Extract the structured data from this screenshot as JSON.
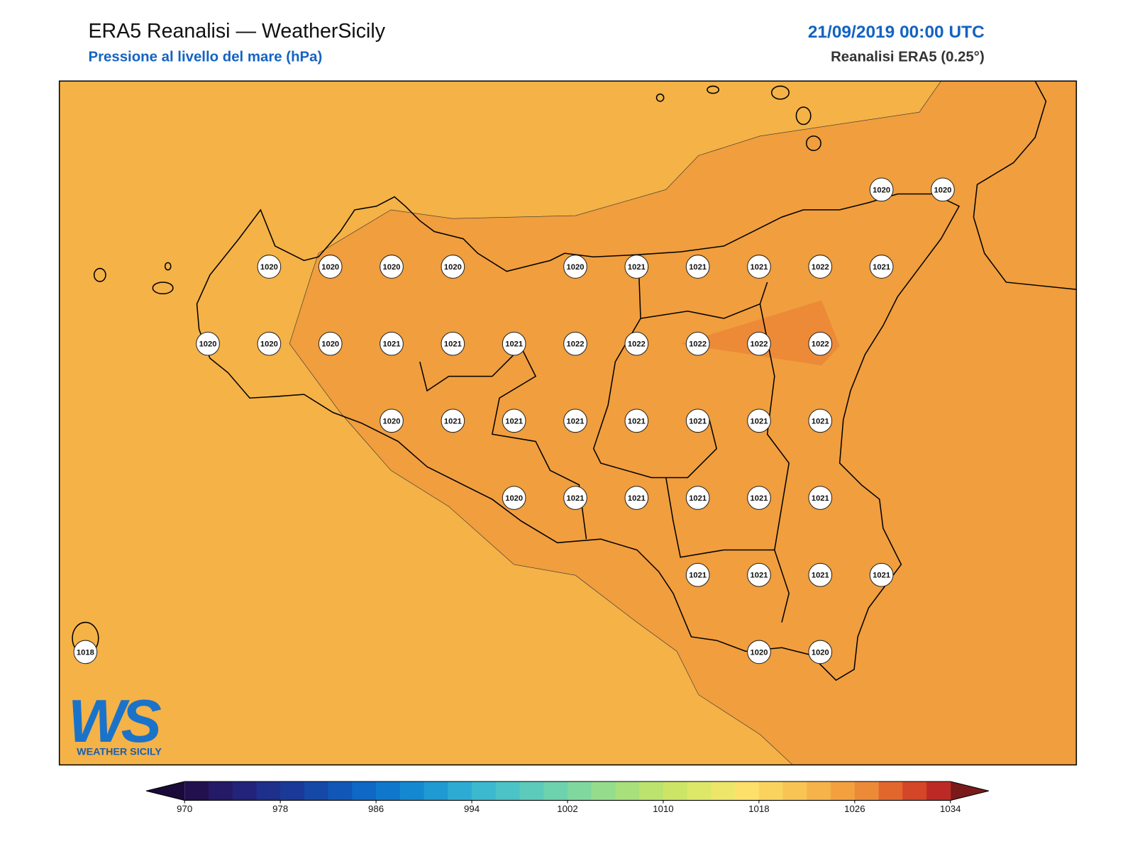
{
  "header": {
    "title": "ERA5 Reanalisi — WeatherSicily",
    "subtitle": "Pressione al livello del mare (hPa)",
    "date": "21/09/2019 00:00 UTC",
    "source": "Reanalisi ERA5 (0.25°)"
  },
  "grid": {
    "rows": [
      [
        null,
        null,
        null,
        null,
        null,
        null,
        null,
        null,
        null,
        null,
        null,
        null,
        null,
        1020,
        1020
      ],
      [
        null,
        null,
        null,
        1020,
        1020,
        1020,
        1020,
        null,
        1020,
        1021,
        1021,
        1021,
        1022,
        1021,
        null
      ],
      [
        null,
        null,
        1020,
        1020,
        1020,
        1021,
        1021,
        1021,
        1022,
        1022,
        1022,
        1022,
        1022,
        null,
        null
      ],
      [
        null,
        null,
        null,
        null,
        null,
        1020,
        1021,
        1021,
        1021,
        1021,
        1021,
        1021,
        1021,
        null,
        null
      ],
      [
        null,
        null,
        null,
        null,
        null,
        null,
        null,
        1020,
        1021,
        1021,
        1021,
        1021,
        1021,
        null,
        null
      ],
      [
        null,
        null,
        null,
        null,
        null,
        null,
        null,
        null,
        null,
        null,
        1021,
        1021,
        1021,
        1021,
        null
      ],
      [
        1018,
        null,
        null,
        null,
        null,
        null,
        null,
        null,
        null,
        null,
        null,
        1020,
        1020,
        null,
        null
      ]
    ]
  },
  "colorbar": {
    "range": [
      970,
      1034
    ],
    "ticks": [
      970,
      978,
      986,
      994,
      1002,
      1010,
      1018,
      1026,
      1034
    ],
    "colors": [
      "#22104e",
      "#241a66",
      "#23237a",
      "#1e2f8c",
      "#1b3a98",
      "#1648a8",
      "#1157b8",
      "#0e68c4",
      "#0f78cc",
      "#1489d0",
      "#1f9ad2",
      "#2eabd3",
      "#3db9cf",
      "#4cc3c6",
      "#5ccbbb",
      "#6dd2ae",
      "#80d89e",
      "#95dd8d",
      "#a8e07c",
      "#bbe36e",
      "#cde566",
      "#dde868",
      "#eee66a",
      "#fde06a",
      "#fad35f",
      "#f8c454",
      "#f5b34a",
      "#f3a13f",
      "#ec8a38",
      "#e2672d",
      "#d34628",
      "#bd2a26"
    ],
    "under": "#1a0a3a",
    "over": "#7a1a1a"
  },
  "logo": {
    "text": "WS",
    "caption": "WEATHER SICILY"
  }
}
